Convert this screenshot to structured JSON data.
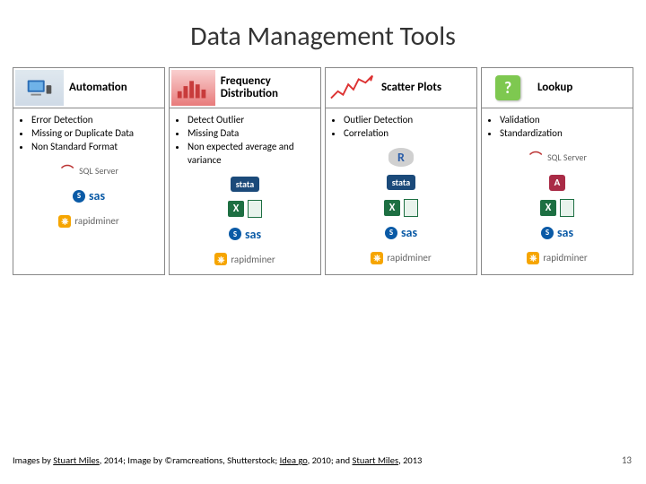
{
  "title": "Data Management Tools",
  "columns": [
    {
      "title": "Automation",
      "thumb": "automation",
      "bullets": [
        "Error Detection",
        "Missing or Duplicate Data",
        "Non Standard Format"
      ],
      "logos": [
        "sqlserver",
        "sas",
        "rapidminer"
      ]
    },
    {
      "title": "Frequency Distribution",
      "thumb": "freq",
      "bullets": [
        "Detect Outlier",
        "Missing Data",
        "Non expected average and variance"
      ],
      "logos": [
        "stata",
        "excel",
        "sas",
        "rapidminer"
      ]
    },
    {
      "title": "Scatter Plots",
      "thumb": "scatter",
      "bullets": [
        "Outlier Detection",
        "Correlation"
      ],
      "logos": [
        "rlogo",
        "stata",
        "excel",
        "sas",
        "rapidminer"
      ]
    },
    {
      "title": "Lookup",
      "thumb": "lookup",
      "bullets": [
        "Validation",
        "Standardization"
      ],
      "logos": [
        "sqlserver",
        "access",
        "excel",
        "sas",
        "rapidminer"
      ]
    }
  ],
  "logo_labels": {
    "sqlserver": "SQL Server",
    "sas": "sas",
    "rapidminer": "rapidminer",
    "stata": "stata",
    "excel": "",
    "rlogo": "R",
    "access": ""
  },
  "footer_parts": {
    "p1": "Images by ",
    "u1": "Stuart Miles",
    "p2": ", 2014; Image by ©ramcreations, Shutterstock; ",
    "u2": "Idea go",
    "p3": ", 2010; and ",
    "u3": "Stuart Miles",
    "p4": ", 2013"
  },
  "page_number": "13",
  "colors": {
    "title": "#333333",
    "border": "#888888",
    "sas_blue": "#0a5aa6",
    "rapidminer_orange": "#f6a500",
    "stata_blue": "#1b4a7a",
    "excel_green": "#1d6f42",
    "access_red": "#a92b46",
    "lookup_green": "#7ec850"
  }
}
